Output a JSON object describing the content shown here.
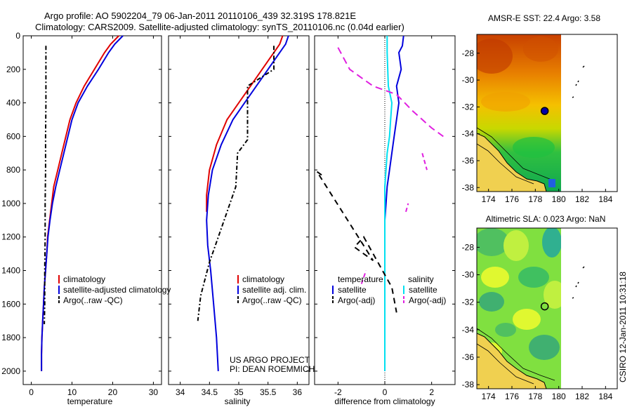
{
  "header": {
    "title_line1": "Argo profile: AO 5902204_79 06-Jan-2011 20110106_439 32.319S 178.821E",
    "title_line2": "Climatology: CARS2009. Satellite-adjusted climatology: synTS_20110106.nc (0.04d earlier)"
  },
  "credits": {
    "project": "US ARGO PROJECT",
    "pi": "PI: DEAN ROEMMICH",
    "csiro": "CSIRO 12-Jan-2011 10:31:18"
  },
  "colors": {
    "climatology": "#e00000",
    "satellite": "#0000dd",
    "argo": "#000000",
    "cyan": "#00e0f0",
    "magenta": "#e020e0",
    "land": "#f0d050"
  },
  "chart_data": [
    {
      "id": "temperature",
      "type": "line",
      "xlabel": "temperature",
      "ylabel": "",
      "xlim": [
        -2,
        32
      ],
      "ylim": [
        2080,
        0
      ],
      "xticks": [
        0,
        10,
        20,
        30
      ],
      "yticks": [
        0,
        200,
        400,
        600,
        800,
        1000,
        1200,
        1400,
        1600,
        1800,
        2000
      ],
      "legend": [
        "climatology",
        "satellite-adjusted climatology",
        "Argo(..raw -QC)"
      ],
      "series": [
        {
          "name": "climatology",
          "color": "#e00000",
          "dash": "",
          "points": [
            [
              21.5,
              0
            ],
            [
              19.5,
              50
            ],
            [
              18.0,
              100
            ],
            [
              15.5,
              200
            ],
            [
              13.0,
              300
            ],
            [
              11.0,
              400
            ],
            [
              9.5,
              500
            ],
            [
              8.5,
              600
            ],
            [
              7.5,
              700
            ],
            [
              6.5,
              800
            ],
            [
              5.5,
              900
            ],
            [
              5.0,
              1000
            ],
            [
              4.5,
              1100
            ],
            [
              4.0,
              1200
            ],
            [
              3.8,
              1300
            ],
            [
              3.5,
              1400
            ],
            [
              3.2,
              1500
            ],
            [
              3.0,
              1600
            ],
            [
              2.8,
              1700
            ],
            [
              2.6,
              1800
            ],
            [
              2.5,
              1900
            ],
            [
              2.5,
              2000
            ]
          ]
        },
        {
          "name": "satellite-adjusted climatology",
          "color": "#0000dd",
          "dash": "",
          "points": [
            [
              22.5,
              0
            ],
            [
              20.5,
              50
            ],
            [
              19.0,
              100
            ],
            [
              16.5,
              200
            ],
            [
              13.8,
              300
            ],
            [
              11.5,
              400
            ],
            [
              10.0,
              500
            ],
            [
              9.0,
              600
            ],
            [
              8.0,
              700
            ],
            [
              7.0,
              800
            ],
            [
              6.0,
              900
            ],
            [
              5.2,
              1000
            ],
            [
              4.6,
              1100
            ],
            [
              4.1,
              1200
            ],
            [
              3.8,
              1300
            ],
            [
              3.5,
              1400
            ],
            [
              3.2,
              1500
            ],
            [
              3.0,
              1600
            ],
            [
              2.8,
              1700
            ],
            [
              2.6,
              1800
            ],
            [
              2.5,
              1900
            ],
            [
              2.5,
              2000
            ]
          ]
        },
        {
          "name": "Argo(..raw -QC)",
          "color": "#000000",
          "dash": "6,3,2,3",
          "points": [
            [
              3.6,
              60
            ],
            [
              3.6,
              200
            ],
            [
              3.6,
              400
            ],
            [
              3.5,
              600
            ],
            [
              3.5,
              800
            ],
            [
              3.4,
              1000
            ],
            [
              3.4,
              1200
            ],
            [
              3.3,
              1400
            ],
            [
              3.3,
              1600
            ],
            [
              3.2,
              1720
            ]
          ]
        }
      ]
    },
    {
      "id": "salinity",
      "type": "line",
      "xlabel": "salinity",
      "ylabel": "",
      "xlim": [
        33.8,
        36.2
      ],
      "ylim": [
        2080,
        0
      ],
      "xticks": [
        34,
        34.5,
        35,
        35.5,
        36
      ],
      "yticks": [],
      "legend": [
        "climatology",
        "satellite adj. clim.",
        "Argo(..raw -QC)"
      ],
      "series": [
        {
          "name": "climatology",
          "color": "#e00000",
          "dash": "",
          "points": [
            [
              35.75,
              0
            ],
            [
              35.7,
              50
            ],
            [
              35.6,
              100
            ],
            [
              35.4,
              200
            ],
            [
              35.2,
              300
            ],
            [
              35.0,
              400
            ],
            [
              34.8,
              500
            ],
            [
              34.62,
              650
            ],
            [
              34.5,
              800
            ],
            [
              34.45,
              950
            ],
            [
              34.45,
              1050
            ]
          ]
        },
        {
          "name": "satellite adj. clim.",
          "color": "#0000dd",
          "dash": "",
          "points": [
            [
              35.85,
              0
            ],
            [
              35.8,
              50
            ],
            [
              35.7,
              100
            ],
            [
              35.5,
              200
            ],
            [
              35.3,
              300
            ],
            [
              35.1,
              400
            ],
            [
              34.9,
              500
            ],
            [
              34.7,
              650
            ],
            [
              34.55,
              800
            ],
            [
              34.48,
              950
            ],
            [
              34.45,
              1100
            ],
            [
              34.47,
              1250
            ],
            [
              34.52,
              1400
            ],
            [
              34.57,
              1600
            ],
            [
              34.62,
              1800
            ],
            [
              34.65,
              2000
            ]
          ]
        },
        {
          "name": "Argo(..raw -QC)",
          "color": "#000000",
          "dash": "6,3,2,3",
          "points": [
            [
              35.6,
              60
            ],
            [
              35.6,
              200
            ],
            [
              35.15,
              300
            ],
            [
              35.15,
              620
            ],
            [
              34.98,
              700
            ],
            [
              34.95,
              900
            ],
            [
              34.75,
              1100
            ],
            [
              34.6,
              1250
            ],
            [
              34.5,
              1350
            ],
            [
              34.35,
              1550
            ],
            [
              34.3,
              1700
            ]
          ]
        }
      ]
    },
    {
      "id": "difference",
      "type": "line",
      "xlabel": "difference from climatology",
      "ylabel": "",
      "xlim": [
        -3.0,
        3.0
      ],
      "ylim": [
        2080,
        0
      ],
      "xticks": [
        -2,
        0,
        2
      ],
      "yticks": [],
      "legend": [
        "temperature",
        "satellite",
        "Argo(-adj)",
        "salinity",
        "satellite",
        "Argo(-adj)"
      ],
      "series": [
        {
          "name": "temperature satellite",
          "color": "#0000dd",
          "dash": "",
          "points": [
            [
              0.8,
              0
            ],
            [
              0.75,
              60
            ],
            [
              0.6,
              100
            ],
            [
              0.7,
              200
            ],
            [
              0.5,
              300
            ],
            [
              0.6,
              400
            ],
            [
              0.5,
              500
            ],
            [
              0.4,
              600
            ],
            [
              0.3,
              700
            ],
            [
              0.2,
              800
            ],
            [
              0.1,
              900
            ],
            [
              0.05,
              1000
            ],
            [
              0.0,
              1100
            ],
            [
              0.0,
              1200
            ],
            [
              0.0,
              1300
            ],
            [
              0.0,
              1400
            ],
            [
              0.0,
              1500
            ],
            [
              0.0,
              1600
            ],
            [
              0.0,
              1700
            ],
            [
              0.0,
              1800
            ],
            [
              0.0,
              1900
            ],
            [
              0.0,
              2000
            ]
          ]
        },
        {
          "name": "salinity satellite",
          "color": "#00e0f0",
          "dash": "",
          "points": [
            [
              0.1,
              0
            ],
            [
              0.1,
              100
            ],
            [
              0.15,
              300
            ],
            [
              0.3,
              400
            ],
            [
              0.25,
              500
            ],
            [
              0.2,
              600
            ],
            [
              0.1,
              700
            ],
            [
              0.05,
              800
            ],
            [
              0.0,
              900
            ],
            [
              0.0,
              1000
            ],
            [
              0.0,
              1200
            ],
            [
              0.0,
              1400
            ],
            [
              0.0,
              1600
            ],
            [
              0.0,
              1800
            ],
            [
              0.0,
              2000
            ]
          ]
        },
        {
          "name": "temperature Argo(-adj)",
          "color": "#000000",
          "dash": "8,6",
          "points": [
            [
              -2.7,
              830
            ],
            [
              -2.9,
              810
            ],
            [
              -0.5,
              1340
            ],
            [
              -1.3,
              1260
            ],
            [
              -0.9,
              1200
            ],
            [
              0.3,
              1500
            ],
            [
              0.5,
              1650
            ]
          ]
        },
        {
          "name": "salinity Argo(-adj)",
          "color": "#e020e0",
          "dash": "10,6",
          "points": [
            [
              -2.0,
              70
            ],
            [
              -1.5,
              200
            ],
            [
              -0.5,
              300
            ],
            [
              0.5,
              350
            ],
            [
              1.2,
              450
            ],
            [
              2.0,
              550
            ],
            [
              2.5,
              600
            ]
          ]
        }
      ],
      "extra_marks": [
        {
          "name": "salinity Argo(-adj)",
          "color": "#e020e0",
          "points": [
            [
              1.6,
              700
            ],
            [
              1.8,
              800
            ]
          ]
        },
        {
          "name": "salinity Argo(-adj)",
          "color": "#e020e0",
          "points": [
            [
              0.9,
              1050
            ],
            [
              1.0,
              1000
            ]
          ]
        },
        {
          "name": "salinity Argo(-adj)",
          "color": "#e020e0",
          "points": [
            [
              -1.0,
              1480
            ],
            [
              -0.8,
              1400
            ]
          ]
        }
      ]
    },
    {
      "id": "sst_map",
      "type": "heatmap",
      "title": "AMSR-E SST: 22.4 Argo: 3.58",
      "xlim": [
        173,
        185
      ],
      "ylim": [
        -38.3,
        -26.6
      ],
      "xticks": [
        174,
        176,
        178,
        180,
        182,
        184
      ],
      "yticks": [
        -28,
        -30,
        -32,
        -34,
        -36,
        -38
      ],
      "marker": [
        178.8,
        -32.3
      ],
      "marker_filled": true
    },
    {
      "id": "sla_map",
      "type": "heatmap",
      "title": "Altimetric SLA: 0.023 Argo: NaN",
      "xlim": [
        173,
        185
      ],
      "ylim": [
        -38.3,
        -26.6
      ],
      "xticks": [
        174,
        176,
        178,
        180,
        182,
        184
      ],
      "yticks": [
        -28,
        -30,
        -32,
        -34,
        -36,
        -38
      ],
      "marker": [
        178.8,
        -32.3
      ],
      "marker_filled": false
    }
  ]
}
